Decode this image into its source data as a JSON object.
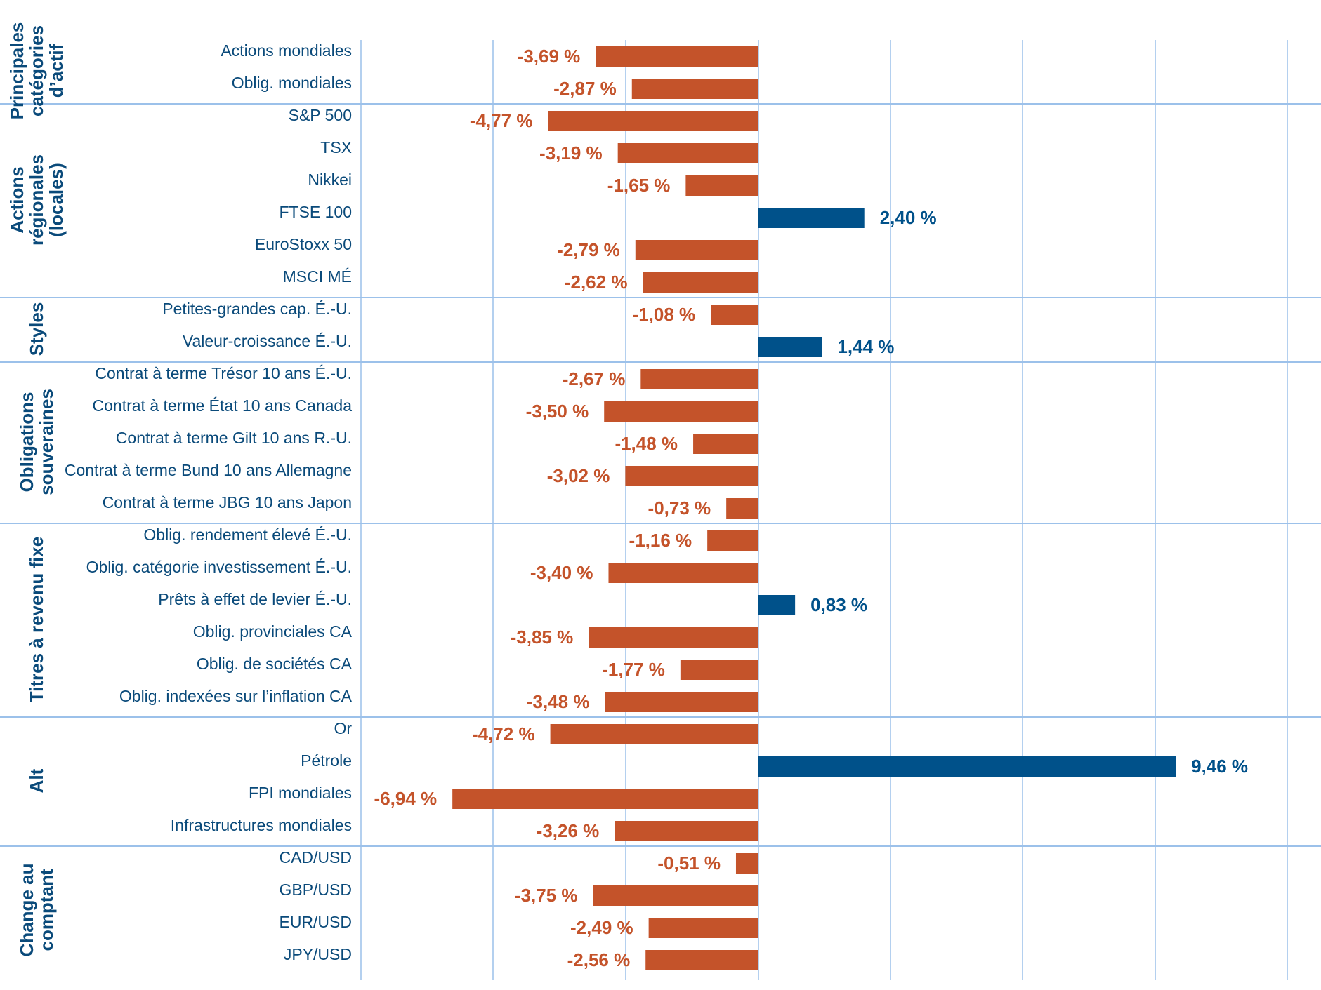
{
  "chart_data": {
    "type": "bar",
    "orientation": "horizontal",
    "unit": "%",
    "xlim": [
      -9,
      12
    ],
    "grid": true,
    "colors": {
      "negative": "#c4532a",
      "positive": "#00518a",
      "grid": "#9cc1ea",
      "text": "#0a4a7a"
    },
    "groups": [
      {
        "label": [
          "Principales",
          "catégories",
          "d’actif"
        ],
        "items": [
          {
            "name": "Actions mondiales",
            "value": -3.69,
            "label": "-3,69 %"
          },
          {
            "name": "Oblig. mondiales",
            "value": -2.87,
            "label": "-2,87 %"
          }
        ]
      },
      {
        "label": [
          "Actions",
          "régionales",
          "(locales)"
        ],
        "items": [
          {
            "name": "S&P 500",
            "value": -4.77,
            "label": "-4,77 %"
          },
          {
            "name": "TSX",
            "value": -3.19,
            "label": "-3,19 %"
          },
          {
            "name": "Nikkei",
            "value": -1.65,
            "label": "-1,65 %"
          },
          {
            "name": "FTSE 100",
            "value": 2.4,
            "label": "2,40 %"
          },
          {
            "name": "EuroStoxx 50",
            "value": -2.79,
            "label": "-2,79 %"
          },
          {
            "name": "MSCI MÉ",
            "value": -2.62,
            "label": "-2,62 %"
          }
        ]
      },
      {
        "label": [
          "Styles"
        ],
        "items": [
          {
            "name": "Petites-grandes cap. É.-U.",
            "value": -1.08,
            "label": "-1,08 %"
          },
          {
            "name": "Valeur-croissance É.-U.",
            "value": 1.44,
            "label": "1,44 %"
          }
        ]
      },
      {
        "label": [
          "Obligations",
          "souveraines"
        ],
        "items": [
          {
            "name": "Contrat à terme Trésor 10 ans É.-U.",
            "value": -2.67,
            "label": "-2,67 %"
          },
          {
            "name": "Contrat à terme État 10 ans Canada",
            "value": -3.5,
            "label": "-3,50 %"
          },
          {
            "name": "Contrat à terme Gilt 10 ans R.-U.",
            "value": -1.48,
            "label": "-1,48 %"
          },
          {
            "name": "Contrat à terme Bund 10 ans Allemagne",
            "value": -3.02,
            "label": "-3,02 %"
          },
          {
            "name": "Contrat à terme JBG 10 ans Japon",
            "value": -0.73,
            "label": "-0,73 %"
          }
        ]
      },
      {
        "label": [
          "Titres à revenu fixe"
        ],
        "items": [
          {
            "name": "Oblig. rendement élevé É.-U.",
            "value": -1.16,
            "label": "-1,16 %"
          },
          {
            "name": "Oblig. catégorie investissement É.-U.",
            "value": -3.4,
            "label": "-3,40 %"
          },
          {
            "name": "Prêts à effet de levier É.-U.",
            "value": 0.83,
            "label": "0,83 %"
          },
          {
            "name": "Oblig. provinciales CA",
            "value": -3.85,
            "label": "-3,85 %"
          },
          {
            "name": "Oblig. de sociétés CA",
            "value": -1.77,
            "label": "-1,77 %"
          },
          {
            "name": "Oblig. indexées sur l’inflation CA",
            "value": -3.48,
            "label": "-3,48 %"
          }
        ]
      },
      {
        "label": [
          "Alt"
        ],
        "items": [
          {
            "name": "Or",
            "value": -4.72,
            "label": "-4,72 %"
          },
          {
            "name": "Pétrole",
            "value": 9.46,
            "label": "9,46 %"
          },
          {
            "name": "FPI mondiales",
            "value": -6.94,
            "label": "-6,94 %"
          },
          {
            "name": "Infrastructures mondiales",
            "value": -3.26,
            "label": "-3,26 %"
          }
        ]
      },
      {
        "label": [
          "Change au",
          "comptant"
        ],
        "items": [
          {
            "name": "CAD/USD",
            "value": -0.51,
            "label": "-0,51 %"
          },
          {
            "name": "GBP/USD",
            "value": -3.75,
            "label": "-3,75 %"
          },
          {
            "name": "EUR/USD",
            "value": -2.49,
            "label": "-2,49 %"
          },
          {
            "name": "JPY/USD",
            "value": -2.56,
            "label": "-2,56 %"
          }
        ]
      }
    ]
  }
}
